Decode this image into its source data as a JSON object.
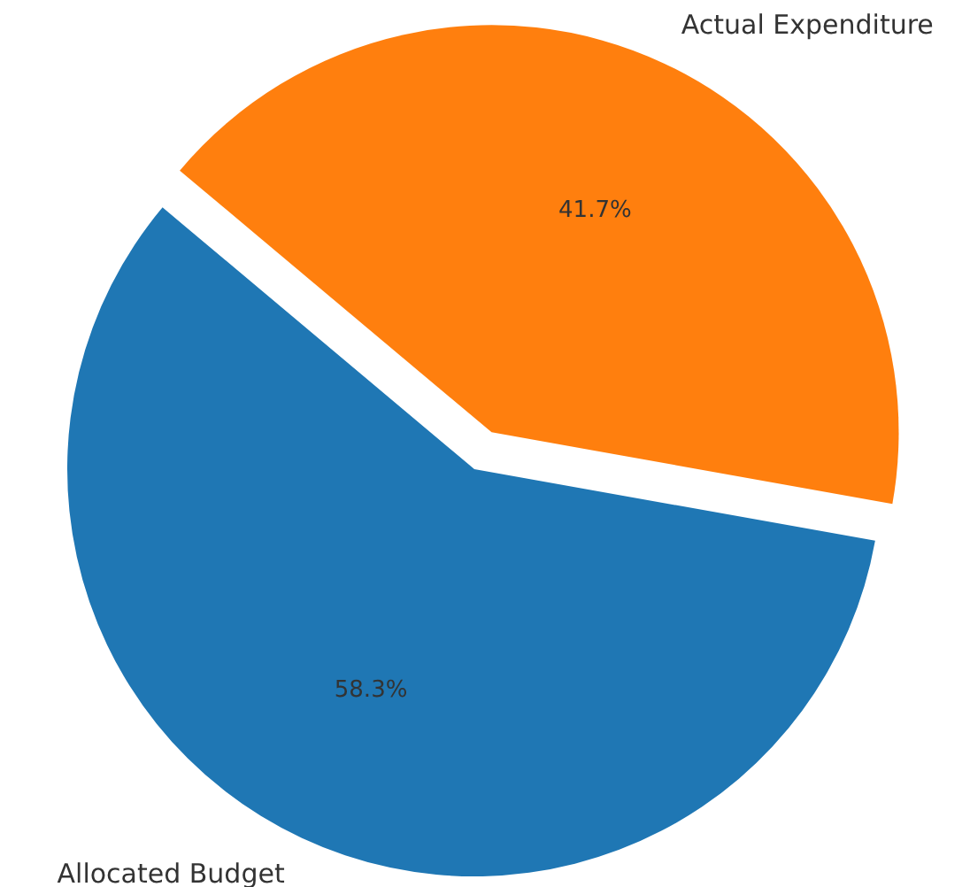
{
  "chart_data": {
    "type": "pie",
    "categories": [
      "Allocated Budget",
      "Actual Expenditure"
    ],
    "values": [
      58.3,
      41.7
    ],
    "colors": [
      "#1f77b4",
      "#ff7f0e"
    ],
    "value_labels": [
      "58.3%",
      "41.7%"
    ]
  }
}
